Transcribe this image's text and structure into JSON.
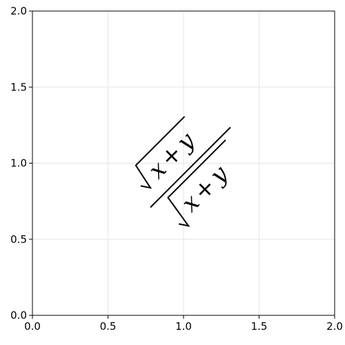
{
  "chart_data": {
    "type": "scatter",
    "title": "",
    "xlabel": "",
    "ylabel": "",
    "xlim": [
      0,
      2
    ],
    "ylim": [
      0,
      2
    ],
    "xticks": [
      "0.0",
      "0.5",
      "1.0",
      "1.5",
      "2.0"
    ],
    "yticks": [
      "0.0",
      "0.5",
      "1.0",
      "1.5",
      "2.0"
    ],
    "grid": true,
    "annotations": [
      {
        "x": 1.0,
        "y": 1.0,
        "rotation_deg": 45,
        "text_parts": [
          "x",
          "+",
          "y"
        ],
        "form": "fraction",
        "position": "numerator"
      },
      {
        "x": 1.0,
        "y": 1.0,
        "rotation_deg": 45,
        "text_parts": [
          "x",
          "+",
          "y"
        ],
        "form": "fraction",
        "position": "denominator"
      }
    ]
  }
}
